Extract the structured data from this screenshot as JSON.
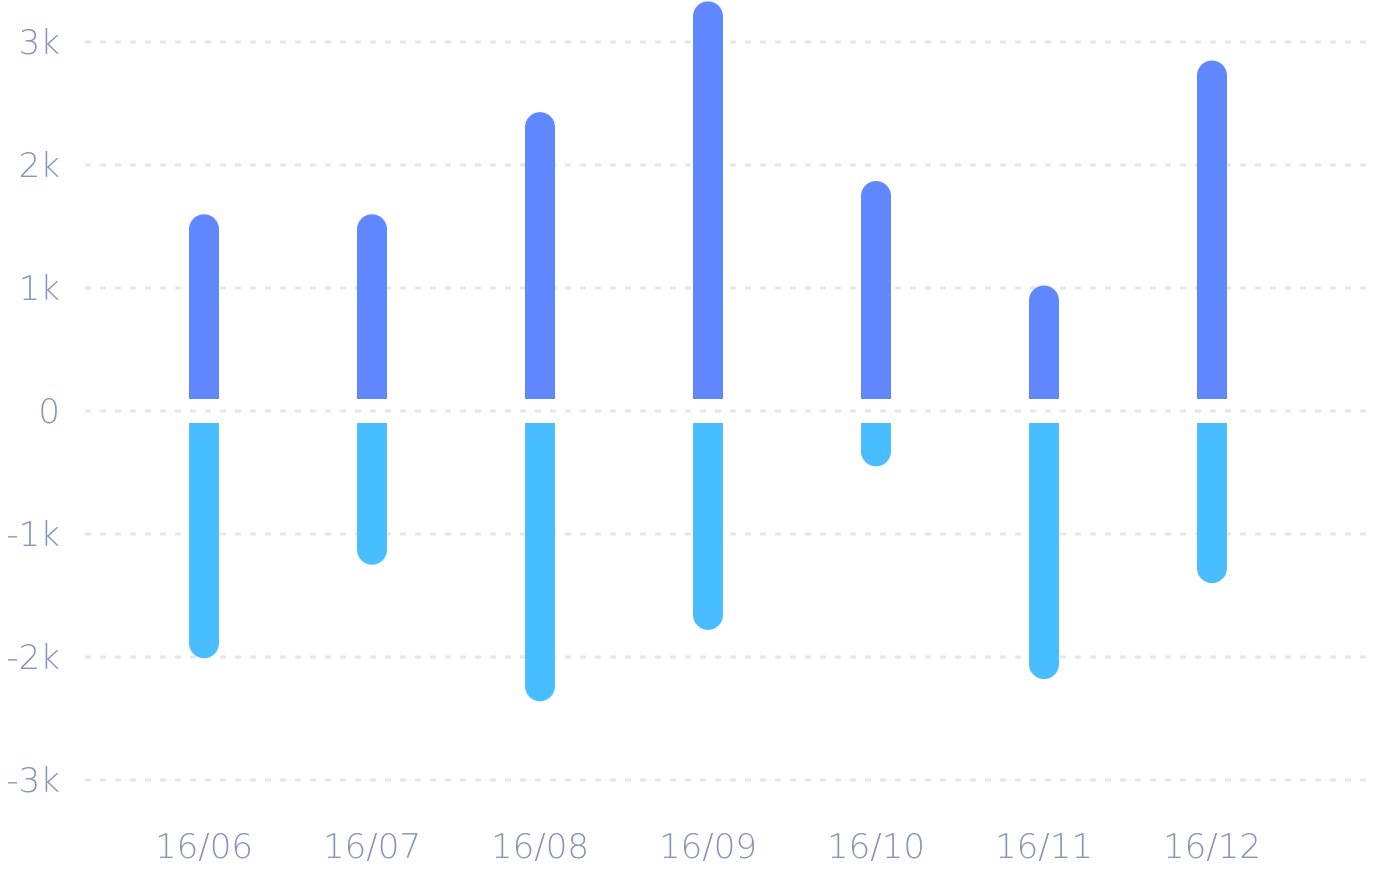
{
  "chart_data": {
    "type": "bar",
    "categories": [
      "16/06",
      "16/07",
      "16/08",
      "16/09",
      "16/10",
      "16/11",
      "16/12"
    ],
    "series": [
      {
        "values": [
          1600,
          1600,
          2430,
          3330,
          1870,
          1020,
          2850
        ],
        "color": "#5f87ff"
      },
      {
        "values": [
          -2010,
          -1250,
          -2360,
          -1780,
          -450,
          -2180,
          -1400
        ],
        "color": "#48bdff"
      }
    ],
    "ylim": [
      -3000,
      3000
    ],
    "yticks": [
      3000,
      2000,
      1000,
      0,
      -1000,
      -2000,
      -3000
    ],
    "ytick_labels": [
      "3k",
      "2k",
      "1k",
      "0",
      "-1k",
      "-2k",
      "-3k"
    ],
    "grid": true,
    "title": "",
    "xlabel": "",
    "ylabel": ""
  }
}
